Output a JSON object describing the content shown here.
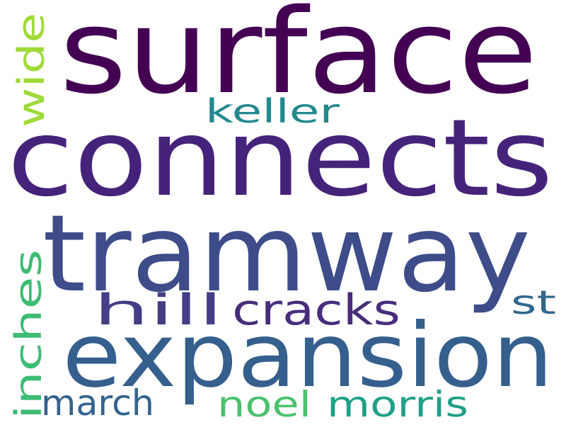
{
  "words": [
    {
      "id": "surface",
      "text": "surface",
      "color": "#440154"
    },
    {
      "id": "connects",
      "text": "connects",
      "color": "#46237a"
    },
    {
      "id": "tramway",
      "text": "tramway",
      "color": "#3e4c8a"
    },
    {
      "id": "expansion",
      "text": "expansion",
      "color": "#355f8d"
    },
    {
      "id": "hill",
      "text": "hill",
      "color": "#433e85"
    },
    {
      "id": "cracks",
      "text": "cracks",
      "color": "#472d7b"
    },
    {
      "id": "keller",
      "text": "keller",
      "color": "#23898e"
    },
    {
      "id": "wide",
      "text": "wide",
      "color": "#a0da39"
    },
    {
      "id": "inches",
      "text": "inches",
      "color": "#3dbc74"
    },
    {
      "id": "st",
      "text": "st",
      "color": "#31678e"
    },
    {
      "id": "march",
      "text": "march",
      "color": "#33638d"
    },
    {
      "id": "noel",
      "text": "noel",
      "color": "#4ac16d"
    },
    {
      "id": "morris",
      "text": "morris",
      "color": "#1fa088"
    }
  ]
}
